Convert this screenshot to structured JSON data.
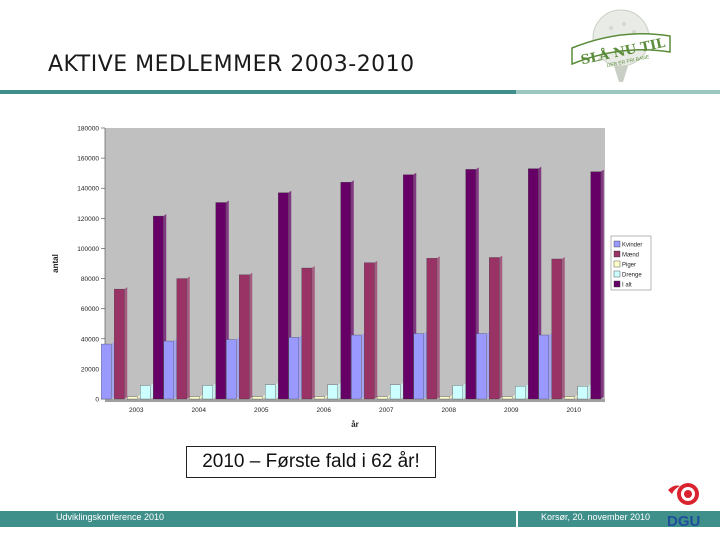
{
  "slide": {
    "title": "AKTIVE MEDLEMMER 2003-2010",
    "callout": "2010 – Første fald i 62 år!",
    "footer_left": "Udviklingskonference 2010",
    "footer_right": "Korsør, 20. november 2010"
  },
  "logo": {
    "text_main": "SLÅ NU TIL",
    "text_sub": "DER ER FRI BANE",
    "icon": "golf-ball-tee-icon"
  },
  "dgu_logo": {
    "text": "DGU",
    "icon": "dgu-golf-logo-icon"
  },
  "colors": {
    "accent": "#3f8f8a",
    "accent_light": "#9cc7c1",
    "plot_bg": "#c0c0c0",
    "kvinder": "#9999ff",
    "maend": "#993366",
    "piger": "#ffffcc",
    "drenge": "#ccffff",
    "ialt": "#660066"
  },
  "chart_data": {
    "type": "bar",
    "xlabel": "år",
    "ylabel": "antal",
    "ylim": [
      0,
      180000
    ],
    "yticks": [
      "0",
      "20000",
      "40000",
      "60000",
      "80000",
      "100000",
      "120000",
      "140000",
      "160000",
      "180000"
    ],
    "categories": [
      "2003",
      "2004",
      "2005",
      "2006",
      "2007",
      "2008",
      "2009",
      "2010"
    ],
    "series": [
      {
        "name": "Kvinder",
        "color": "#9999ff",
        "values": [
          36500,
          38500,
          39500,
          41000,
          42500,
          43500,
          43500,
          42500
        ]
      },
      {
        "name": "Mænd",
        "color": "#993366",
        "values": [
          73000,
          80000,
          82500,
          87000,
          90500,
          93500,
          94000,
          93000
        ]
      },
      {
        "name": "Piger",
        "color": "#ffffcc",
        "values": [
          1500,
          1500,
          1500,
          1500,
          1500,
          1500,
          1500,
          1500
        ]
      },
      {
        "name": "Drenge",
        "color": "#ccffff",
        "values": [
          9000,
          9000,
          9500,
          9500,
          9500,
          9000,
          8500,
          8500
        ]
      },
      {
        "name": "I alt",
        "color": "#660066",
        "values": [
          121500,
          130500,
          137000,
          144000,
          149000,
          152500,
          153000,
          151000
        ]
      }
    ],
    "legend_position": "right",
    "grid": false
  }
}
